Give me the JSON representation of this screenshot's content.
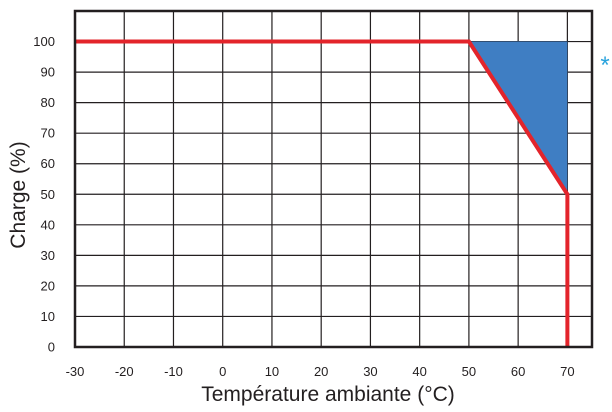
{
  "chart_data": {
    "type": "line",
    "title": "",
    "xlabel": "Température ambiante (°C)",
    "ylabel": "Charge (%)",
    "xlim": [
      -30,
      75
    ],
    "ylim": [
      0,
      110
    ],
    "x_ticks": [
      -30,
      -20,
      -10,
      0,
      10,
      20,
      30,
      40,
      50,
      60,
      70
    ],
    "y_ticks": [
      0,
      10,
      20,
      30,
      40,
      50,
      60,
      70,
      80,
      90,
      100
    ],
    "grid": true,
    "series": [
      {
        "color": "#e3242b",
        "x": [
          -30,
          50,
          70,
          70
        ],
        "y": [
          100,
          100,
          50,
          0
        ]
      }
    ],
    "shaded_region": {
      "color": "#3f7ec3",
      "x": [
        50,
        70,
        70
      ],
      "y": [
        100,
        100,
        50
      ]
    },
    "annotation": {
      "text": "*",
      "color": "#29a3dd"
    }
  }
}
